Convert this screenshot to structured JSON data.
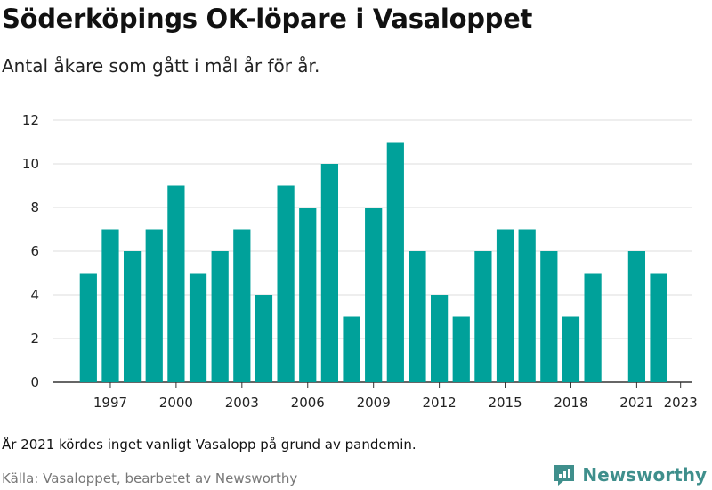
{
  "title": "Söderköpings OK-löpare i Vasaloppet",
  "subtitle": "Antal åkare som gått i mål år för år.",
  "note": "År 2021 kördes inget vanligt Vasalopp på grund av pandemin.",
  "source": "Källa: Vasaloppet, bearbetet av Newsworthy",
  "brand": {
    "name": "Newsworthy",
    "icon": "newsworthy-logo-icon",
    "color": "#3f8f8c"
  },
  "colors": {
    "bar": "#00a19a",
    "grid": "#dddddd",
    "axis": "#333333"
  },
  "chart_data": {
    "type": "bar",
    "categories": [
      1996,
      1997,
      1998,
      1999,
      2000,
      2001,
      2002,
      2003,
      2004,
      2005,
      2006,
      2007,
      2008,
      2009,
      2010,
      2011,
      2012,
      2013,
      2014,
      2015,
      2016,
      2017,
      2018,
      2019,
      2020,
      2021,
      2022,
      2023
    ],
    "values": [
      5,
      7,
      6,
      7,
      9,
      5,
      6,
      7,
      4,
      9,
      8,
      10,
      3,
      8,
      11,
      6,
      4,
      3,
      6,
      7,
      7,
      6,
      3,
      5,
      null,
      6,
      5,
      null
    ],
    "x_tick_labels": [
      "1997",
      "2000",
      "2003",
      "2006",
      "2009",
      "2012",
      "2015",
      "2018",
      "2021",
      "2023"
    ],
    "ylim": [
      0,
      12
    ],
    "y_ticks": [
      0,
      2,
      4,
      6,
      8,
      10,
      12
    ],
    "grid": true,
    "legend": "none"
  }
}
